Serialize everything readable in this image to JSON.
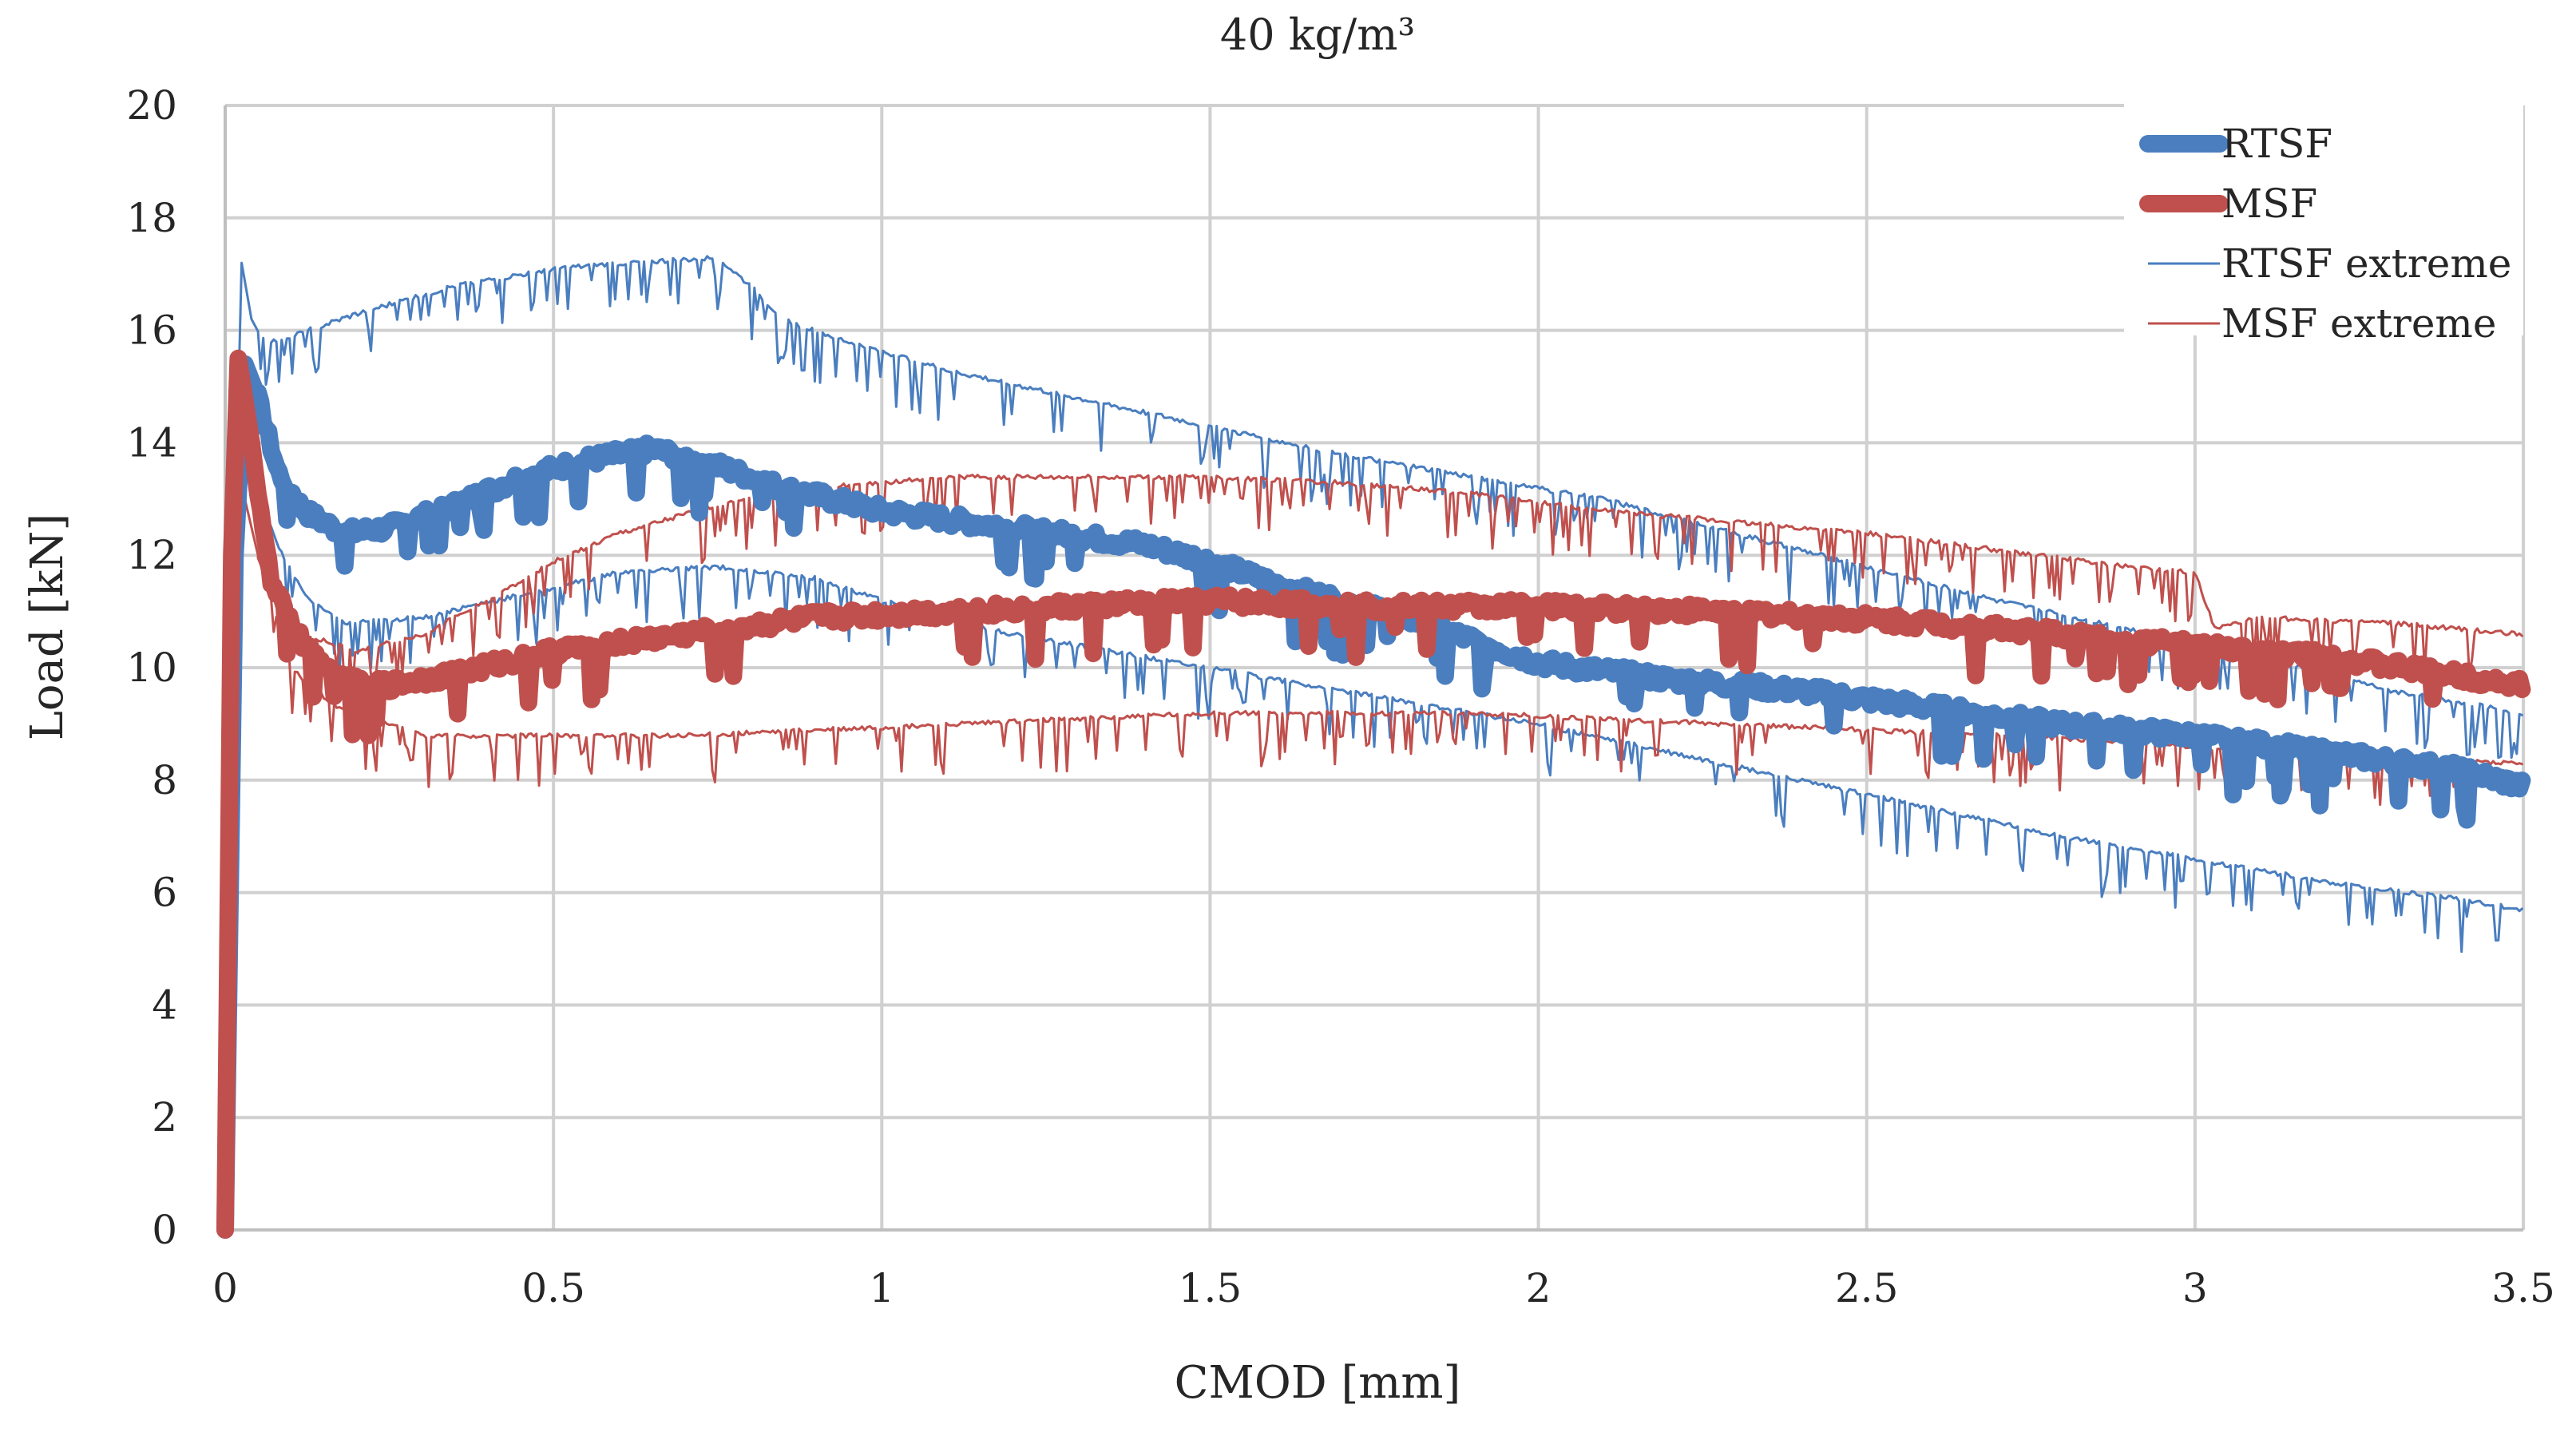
{
  "chart_data": {
    "type": "line",
    "title": "40 kg/m³",
    "xlabel": "CMOD [mm]",
    "ylabel": "Load [kN]",
    "xlim": [
      0,
      3.5
    ],
    "ylim": [
      0,
      20
    ],
    "x_ticks": [
      0,
      0.5,
      1,
      1.5,
      2,
      2.5,
      3,
      3.5
    ],
    "x_tick_labels": [
      "0",
      "0.5",
      "1",
      "1.5",
      "2",
      "2.5",
      "3",
      "3.5"
    ],
    "y_ticks": [
      0,
      2,
      4,
      6,
      8,
      10,
      12,
      14,
      16,
      18,
      20
    ],
    "y_tick_labels": [
      "0",
      "2",
      "4",
      "6",
      "8",
      "10",
      "12",
      "14",
      "16",
      "18",
      "20"
    ],
    "grid": true,
    "legend_position": "top-right",
    "series": [
      {
        "name": "RTSF",
        "color": "#4a7ebf",
        "style": "thick",
        "points": [
          [
            0,
            0
          ],
          [
            0.015,
            12
          ],
          [
            0.03,
            15.4
          ],
          [
            0.05,
            14.8
          ],
          [
            0.08,
            13.5
          ],
          [
            0.12,
            12.8
          ],
          [
            0.18,
            12.4
          ],
          [
            0.25,
            12.5
          ],
          [
            0.35,
            12.9
          ],
          [
            0.45,
            13.4
          ],
          [
            0.55,
            13.7
          ],
          [
            0.65,
            13.9
          ],
          [
            0.75,
            13.6
          ],
          [
            0.85,
            13.2
          ],
          [
            1.0,
            12.8
          ],
          [
            1.2,
            12.5
          ],
          [
            1.4,
            12.2
          ],
          [
            1.5,
            11.9
          ],
          [
            1.6,
            11.5
          ],
          [
            1.7,
            11.2
          ],
          [
            1.8,
            10.9
          ],
          [
            1.9,
            10.5
          ],
          [
            2.0,
            10.1
          ],
          [
            2.2,
            9.8
          ],
          [
            2.4,
            9.6
          ],
          [
            2.6,
            9.3
          ],
          [
            2.8,
            9.0
          ],
          [
            3.0,
            8.8
          ],
          [
            3.2,
            8.5
          ],
          [
            3.4,
            8.2
          ],
          [
            3.5,
            7.9
          ]
        ]
      },
      {
        "name": "MSF",
        "color": "#c0504d",
        "style": "thick",
        "points": [
          [
            0,
            0
          ],
          [
            0.01,
            12
          ],
          [
            0.02,
            15.5
          ],
          [
            0.04,
            14
          ],
          [
            0.07,
            11.5
          ],
          [
            0.12,
            10.4
          ],
          [
            0.18,
            9.8
          ],
          [
            0.25,
            9.7
          ],
          [
            0.35,
            9.9
          ],
          [
            0.5,
            10.3
          ],
          [
            0.7,
            10.6
          ],
          [
            0.9,
            10.9
          ],
          [
            1.1,
            11.0
          ],
          [
            1.3,
            11.1
          ],
          [
            1.5,
            11.2
          ],
          [
            1.7,
            11.1
          ],
          [
            2.0,
            11.1
          ],
          [
            2.3,
            11.0
          ],
          [
            2.6,
            10.8
          ],
          [
            2.9,
            10.5
          ],
          [
            3.2,
            10.2
          ],
          [
            3.5,
            9.7
          ]
        ]
      },
      {
        "name": "RTSF extreme",
        "color": "#4a7ebf",
        "style": "thin",
        "points": [
          [
            0,
            0
          ],
          [
            0.01,
            10
          ],
          [
            0.025,
            17.2
          ],
          [
            0.04,
            16.2
          ],
          [
            0.06,
            15.8
          ],
          [
            0.1,
            15.9
          ],
          [
            0.2,
            16.3
          ],
          [
            0.35,
            16.8
          ],
          [
            0.5,
            17.1
          ],
          [
            0.6,
            17.2
          ],
          [
            0.75,
            17.3
          ],
          [
            0.8,
            16.8
          ],
          [
            0.85,
            16.2
          ],
          [
            0.95,
            15.8
          ],
          [
            1.1,
            15.3
          ],
          [
            1.3,
            14.8
          ],
          [
            1.5,
            14.3
          ],
          [
            1.7,
            13.8
          ],
          [
            1.9,
            13.4
          ],
          [
            2.1,
            13.0
          ],
          [
            2.3,
            12.4
          ],
          [
            2.5,
            11.8
          ],
          [
            2.7,
            11.2
          ],
          [
            2.9,
            10.7
          ],
          [
            3.1,
            10.2
          ],
          [
            3.3,
            9.6
          ],
          [
            3.5,
            9.2
          ]
        ]
      },
      {
        "name": "RTSF extreme",
        "color": "#4a7ebf",
        "style": "thin",
        "points": [
          [
            0,
            0
          ],
          [
            0.02,
            14
          ],
          [
            0.04,
            13.5
          ],
          [
            0.08,
            12.2
          ],
          [
            0.12,
            11.3
          ],
          [
            0.18,
            10.8
          ],
          [
            0.3,
            10.9
          ],
          [
            0.45,
            11.3
          ],
          [
            0.6,
            11.7
          ],
          [
            0.75,
            11.8
          ],
          [
            0.9,
            11.6
          ],
          [
            1.0,
            11.2
          ],
          [
            1.2,
            10.6
          ],
          [
            1.4,
            10.2
          ],
          [
            1.6,
            9.8
          ],
          [
            1.8,
            9.4
          ],
          [
            2.0,
            9.0
          ],
          [
            2.2,
            8.5
          ],
          [
            2.4,
            8.0
          ],
          [
            2.6,
            7.5
          ],
          [
            2.8,
            7.0
          ],
          [
            3.0,
            6.6
          ],
          [
            3.2,
            6.2
          ],
          [
            3.4,
            5.9
          ],
          [
            3.5,
            5.7
          ]
        ]
      },
      {
        "name": "MSF extreme",
        "color": "#c0504d",
        "style": "thin",
        "points": [
          [
            0,
            0
          ],
          [
            0.02,
            14.5
          ],
          [
            0.04,
            13.5
          ],
          [
            0.08,
            11.5
          ],
          [
            0.12,
            10.6
          ],
          [
            0.2,
            10.3
          ],
          [
            0.3,
            10.6
          ],
          [
            0.4,
            11.2
          ],
          [
            0.5,
            11.9
          ],
          [
            0.6,
            12.4
          ],
          [
            0.75,
            12.9
          ],
          [
            0.9,
            13.2
          ],
          [
            1.1,
            13.4
          ],
          [
            1.3,
            13.4
          ],
          [
            1.5,
            13.4
          ],
          [
            1.7,
            13.3
          ],
          [
            1.9,
            13.1
          ],
          [
            2.1,
            12.8
          ],
          [
            2.3,
            12.6
          ],
          [
            2.5,
            12.4
          ],
          [
            2.7,
            12.1
          ],
          [
            2.9,
            11.8
          ],
          [
            3.0,
            11.7
          ],
          [
            3.03,
            10.7
          ],
          [
            3.1,
            10.9
          ],
          [
            3.3,
            10.8
          ],
          [
            3.5,
            10.6
          ]
        ]
      },
      {
        "name": "MSF extreme",
        "color": "#c0504d",
        "style": "thin",
        "points": [
          [
            0,
            0
          ],
          [
            0.02,
            13.5
          ],
          [
            0.05,
            12
          ],
          [
            0.1,
            10
          ],
          [
            0.17,
            9.3
          ],
          [
            0.3,
            8.8
          ],
          [
            0.5,
            8.8
          ],
          [
            0.7,
            8.8
          ],
          [
            0.9,
            8.9
          ],
          [
            1.1,
            9.0
          ],
          [
            1.3,
            9.1
          ],
          [
            1.5,
            9.2
          ],
          [
            1.7,
            9.2
          ],
          [
            1.9,
            9.2
          ],
          [
            2.1,
            9.1
          ],
          [
            2.3,
            9.0
          ],
          [
            2.5,
            8.9
          ],
          [
            2.7,
            8.8
          ],
          [
            2.9,
            8.7
          ],
          [
            3.1,
            8.5
          ],
          [
            3.3,
            8.4
          ],
          [
            3.5,
            8.3
          ]
        ]
      }
    ],
    "legend": [
      {
        "label": "RTSF",
        "color": "#4a7ebf",
        "style": "thick"
      },
      {
        "label": "MSF",
        "color": "#c0504d",
        "style": "thick"
      },
      {
        "label": "RTSF extreme",
        "color": "#4a7ebf",
        "style": "thin"
      },
      {
        "label": "MSF extreme",
        "color": "#c0504d",
        "style": "thin"
      }
    ]
  }
}
